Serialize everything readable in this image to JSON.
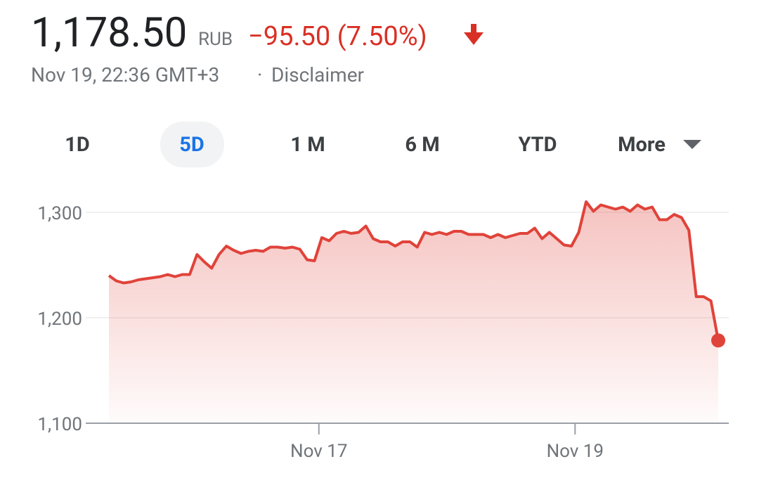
{
  "header": {
    "price": "1,178.50",
    "currency": "RUB",
    "change": "−95.50 (7.50%)",
    "timestamp": "Nov 19, 22:36 GMT+3",
    "separator": "·",
    "disclaimer": "Disclaimer"
  },
  "tabs": [
    "1D",
    "5D",
    "1 M",
    "6 M",
    "YTD",
    "More"
  ],
  "selected_tab": "5D",
  "chart_data": {
    "type": "line",
    "color": "#e0433a",
    "grid": true,
    "values": [
      1240,
      1235,
      1233,
      1234,
      1236,
      1237,
      1238,
      1239,
      1241,
      1239,
      1241,
      1241,
      1260,
      1253,
      1247,
      1260,
      1268,
      1264,
      1261,
      1263,
      1264,
      1263,
      1267,
      1267,
      1266,
      1267,
      1265,
      1255,
      1254,
      1276,
      1273,
      1280,
      1282,
      1280,
      1281,
      1287,
      1275,
      1272,
      1272,
      1268,
      1272,
      1272,
      1267,
      1281,
      1279,
      1281,
      1279,
      1282,
      1282,
      1279,
      1279,
      1279,
      1276,
      1279,
      1276,
      1278,
      1280,
      1280,
      1285,
      1275,
      1281,
      1275,
      1269,
      1268,
      1281,
      1310,
      1301,
      1307,
      1305,
      1303,
      1305,
      1301,
      1307,
      1303,
      1305,
      1293,
      1293,
      1298,
      1295,
      1283,
      1220,
      1220,
      1216,
      1178.5
    ],
    "xlim": [
      0,
      83
    ],
    "xticks": [
      {
        "value": 28.6,
        "label": "Nov 17"
      },
      {
        "value": 63.5,
        "label": "Nov 19"
      }
    ],
    "ylim": [
      1100,
      1320
    ],
    "yticks": [
      {
        "value": 1100,
        "label": "1,100"
      },
      {
        "value": 1200,
        "label": "1,200"
      },
      {
        "value": 1300,
        "label": "1,300"
      }
    ]
  }
}
